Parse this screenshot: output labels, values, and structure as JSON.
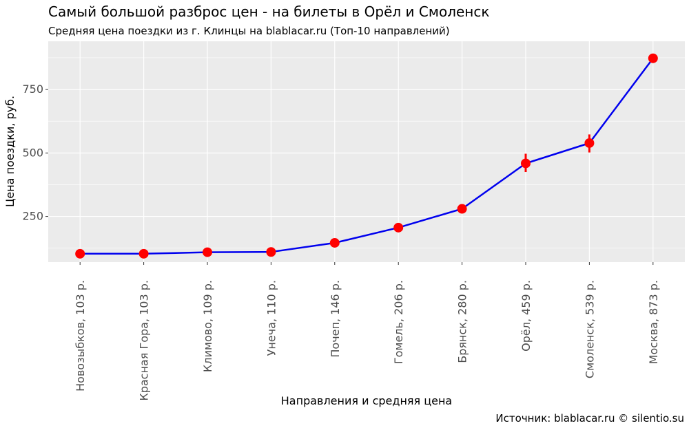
{
  "chart_data": {
    "type": "line",
    "title": "Самый большой разброс цен - на билеты в Орёл и Смоленск",
    "subtitle": "Средняя цена поездки из г. Клинцы на blablacar.ru (Топ-10 направлений)",
    "xlabel": "Направления и средняя цена",
    "ylabel": "Цена поездки, руб.",
    "caption": "Источник: blablacar.ru © silentio.su",
    "categories": [
      "Новозыбков, 103 р.",
      "Красная Гора, 103 р.",
      "Климово, 109 р.",
      "Унеча, 110 р.",
      "Почеп, 146 р.",
      "Гомель, 206 р.",
      "Брянск, 280 р.",
      "Орёл, 459 р.",
      "Смоленск, 539 р.",
      "Москва, 873 р."
    ],
    "values": [
      103,
      103,
      109,
      110,
      146,
      206,
      280,
      459,
      539,
      873
    ],
    "error_bars": [
      null,
      null,
      null,
      null,
      null,
      null,
      null,
      {
        "low": 425,
        "high": 497
      },
      {
        "low": 502,
        "high": 573
      },
      null
    ],
    "yticks": [
      250,
      500,
      750
    ],
    "ylim": [
      70,
      940
    ],
    "grid": true,
    "line_color": "#0000ee",
    "point_color": "#ff0000",
    "panel_color": "#ebebeb"
  }
}
